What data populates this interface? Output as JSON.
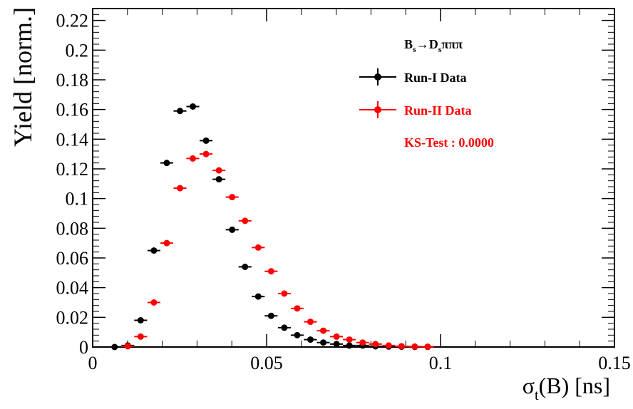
{
  "chart_data": {
    "type": "scatter",
    "title": "",
    "xlabel_main": "σ",
    "xlabel_sub": "t",
    "xlabel_rest": "(B) [ns]",
    "ylabel": "Yield [norm.]",
    "xlim": [
      0,
      0.15
    ],
    "ylim": [
      0,
      0.228
    ],
    "x_ticks": [
      0,
      0.05,
      0.1,
      0.15
    ],
    "x_tick_labels": [
      "0",
      "0.05",
      "0.1",
      "0.15"
    ],
    "y_ticks": [
      0,
      0.02,
      0.04,
      0.06,
      0.08,
      0.1,
      0.12,
      0.14,
      0.16,
      0.18,
      0.2,
      0.22
    ],
    "y_tick_labels": [
      "0",
      "0.02",
      "0.04",
      "0.06",
      "0.08",
      "0.1",
      "0.12",
      "0.14",
      "0.16",
      "0.18",
      "0.2",
      "0.22"
    ],
    "x_bin_half_width": 0.00185,
    "grid": false,
    "legend_position": "top-right",
    "legend": {
      "header_main": "B",
      "header_sub1": "s",
      "header_arrow": "→D",
      "header_sub2": "s",
      "header_rest": "πππ",
      "ks_label": "KS-Test : 0.0000",
      "ks_color": "#ff0000"
    },
    "series": [
      {
        "name": "Run-I Data",
        "color": "#000000",
        "x": [
          0.0063,
          0.0101,
          0.0138,
          0.0176,
          0.0213,
          0.0251,
          0.0288,
          0.0326,
          0.0363,
          0.0401,
          0.0438,
          0.0476,
          0.0513,
          0.0551,
          0.0588,
          0.0626,
          0.0663,
          0.0701,
          0.0738,
          0.0776,
          0.0813,
          0.0851,
          0.0888,
          0.0926,
          0.0963
        ],
        "y": [
          0.0,
          0.001,
          0.018,
          0.065,
          0.124,
          0.159,
          0.162,
          0.139,
          0.113,
          0.079,
          0.054,
          0.034,
          0.021,
          0.013,
          0.008,
          0.005,
          0.003,
          0.002,
          0.001,
          0.001,
          0.0005,
          0.0003,
          0.0002,
          0.0001,
          0.0001
        ]
      },
      {
        "name": "Run-II Data",
        "color": "#ff0000",
        "x": [
          0.0101,
          0.0138,
          0.0176,
          0.0213,
          0.0251,
          0.0288,
          0.0326,
          0.0363,
          0.0401,
          0.0438,
          0.0476,
          0.0513,
          0.0551,
          0.0588,
          0.0626,
          0.0663,
          0.0701,
          0.0738,
          0.0776,
          0.0813,
          0.0851,
          0.0888,
          0.0926,
          0.0963
        ],
        "y": [
          0.0005,
          0.007,
          0.03,
          0.07,
          0.107,
          0.127,
          0.13,
          0.119,
          0.101,
          0.085,
          0.067,
          0.051,
          0.036,
          0.026,
          0.017,
          0.011,
          0.007,
          0.005,
          0.003,
          0.002,
          0.001,
          0.0005,
          0.0003,
          0.0002
        ]
      }
    ]
  }
}
